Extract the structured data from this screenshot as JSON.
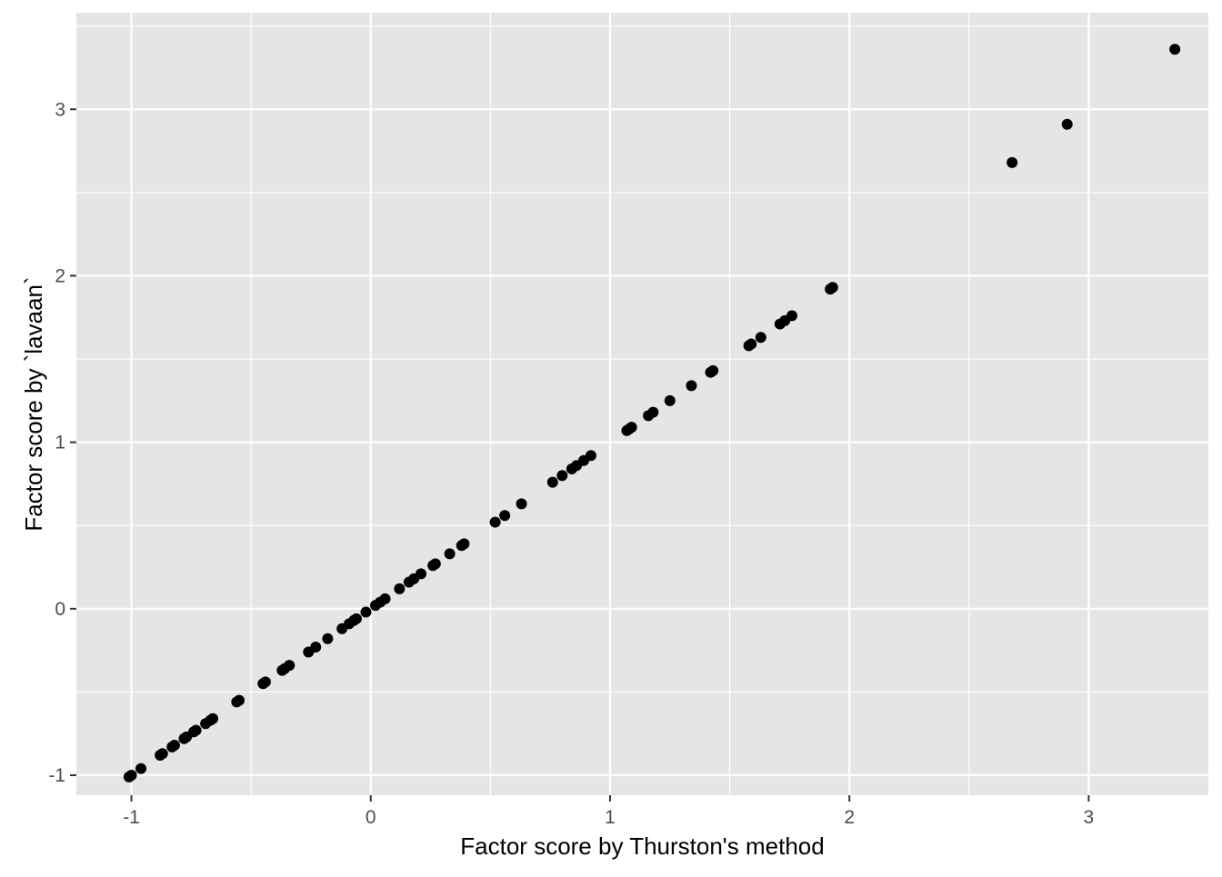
{
  "chart_data": {
    "type": "scatter",
    "title": "",
    "xlabel": "Factor score by Thurston's method",
    "ylabel": "Factor score by `lavaan`",
    "xlim": [
      -1.23,
      3.5
    ],
    "ylim": [
      -1.12,
      3.58
    ],
    "x_ticks": [
      -1,
      0,
      1,
      2,
      3
    ],
    "y_ticks": [
      -1,
      0,
      1,
      2,
      3
    ],
    "x_tick_labels": [
      "-1",
      "0",
      "1",
      "2",
      "3"
    ],
    "y_tick_labels": [
      "-1",
      "0",
      "1",
      "2",
      "3"
    ],
    "grid": true,
    "panel_background": "#e5e5e5",
    "grid_color": "#ffffff",
    "point_color": "#000000",
    "legend": "none",
    "series": [
      {
        "x": [
          -1.01,
          -1.0,
          -0.96,
          -0.88,
          -0.87,
          -0.83,
          -0.82,
          -0.78,
          -0.77,
          -0.74,
          -0.73,
          -0.69,
          -0.67,
          -0.66,
          -0.56,
          -0.55,
          -0.45,
          -0.44,
          -0.37,
          -0.36,
          -0.34,
          -0.26,
          -0.23,
          -0.18,
          -0.12,
          -0.09,
          -0.07,
          -0.06,
          -0.02,
          0.02,
          0.04,
          0.06,
          0.12,
          0.16,
          0.18,
          0.21,
          0.26,
          0.27,
          0.33,
          0.38,
          0.39,
          0.52,
          0.56,
          0.63,
          0.76,
          0.8,
          0.84,
          0.86,
          0.89,
          0.92,
          1.07,
          1.08,
          1.09,
          1.16,
          1.18,
          1.25,
          1.34,
          1.42,
          1.43,
          1.58,
          1.59,
          1.63,
          1.71,
          1.73,
          1.76,
          1.92,
          1.93,
          2.68,
          2.91,
          3.36
        ],
        "y": [
          -1.01,
          -1.0,
          -0.96,
          -0.88,
          -0.87,
          -0.83,
          -0.82,
          -0.78,
          -0.77,
          -0.74,
          -0.73,
          -0.69,
          -0.67,
          -0.66,
          -0.56,
          -0.55,
          -0.45,
          -0.44,
          -0.37,
          -0.36,
          -0.34,
          -0.26,
          -0.23,
          -0.18,
          -0.12,
          -0.09,
          -0.07,
          -0.06,
          -0.02,
          0.02,
          0.04,
          0.06,
          0.12,
          0.16,
          0.18,
          0.21,
          0.26,
          0.27,
          0.33,
          0.38,
          0.39,
          0.52,
          0.56,
          0.63,
          0.76,
          0.8,
          0.84,
          0.86,
          0.89,
          0.92,
          1.07,
          1.08,
          1.09,
          1.16,
          1.18,
          1.25,
          1.34,
          1.42,
          1.43,
          1.58,
          1.59,
          1.63,
          1.71,
          1.73,
          1.76,
          1.92,
          1.93,
          2.68,
          2.91,
          3.36
        ]
      }
    ]
  }
}
